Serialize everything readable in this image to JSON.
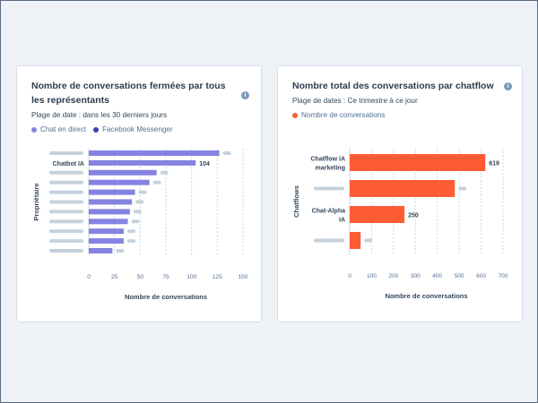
{
  "chart_data": [
    {
      "type": "bar",
      "orientation": "horizontal",
      "title": "Nombre de conversations fermées par tous les représentants",
      "subtitle": "Plage de date : dans les 30 derniers jours",
      "legend": [
        {
          "name": "Chat en direct",
          "color": "#8583e1"
        },
        {
          "name": "Facebook Messenger",
          "color": "#3c3fae"
        }
      ],
      "categories": [
        "",
        "Chatbot IA",
        "",
        "",
        "",
        "",
        "",
        "",
        "",
        "",
        ""
      ],
      "values": [
        127,
        104,
        66,
        59,
        45,
        42,
        40,
        38,
        34,
        34,
        23
      ],
      "data_labels": [
        null,
        "104",
        null,
        null,
        null,
        null,
        null,
        null,
        null,
        null,
        null
      ],
      "xlabel": "Nombre de conversations",
      "ylabel": "Propriétaire",
      "xlim": [
        0,
        150
      ],
      "xticks": [
        0,
        25,
        50,
        75,
        100,
        125,
        150
      ],
      "grid": true,
      "legend_position": "top-left",
      "bar_color": "#8583e1"
    },
    {
      "type": "bar",
      "orientation": "horizontal",
      "title": "Nombre total des conversations par chatflow",
      "subtitle": "Plage de dates : Ce trimestre à ce jour",
      "legend": [
        {
          "name": "Nombre de conversations",
          "color": "#ff5c35"
        }
      ],
      "categories": [
        "Chatflow IA marketing",
        "",
        "Chat-Alpha IA",
        ""
      ],
      "values": [
        619,
        480,
        250,
        50
      ],
      "data_labels": [
        "619",
        null,
        "250",
        null
      ],
      "xlabel": "Nombre de conversations",
      "ylabel": "Chatflows",
      "xlim": [
        0,
        700
      ],
      "xticks": [
        0,
        100,
        200,
        300,
        400,
        500,
        600,
        700
      ],
      "grid": true,
      "legend_position": "top-left",
      "bar_color": "#ff5c35"
    }
  ],
  "placeholder_color": "#c5d2de"
}
